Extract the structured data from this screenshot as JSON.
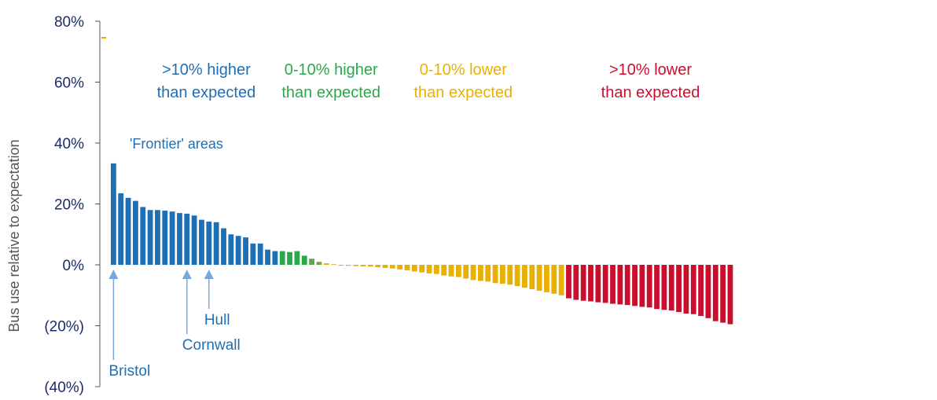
{
  "chart_data": {
    "type": "bar",
    "title": "",
    "ylabel": "Bus use relative to expectation",
    "ylim": [
      -40,
      80
    ],
    "yticks": [
      80,
      60,
      40,
      20,
      0,
      -20,
      -40
    ],
    "ytick_labels": [
      "80%",
      "60%",
      "40%",
      "20%",
      "0%",
      "(20%)",
      "(40%)"
    ],
    "grid": false,
    "bands": [
      {
        "label_line1": ">10% higher",
        "label_line2": "than expected",
        "color": "#1f6fb5",
        "start": 0,
        "end": 26
      },
      {
        "label_line1": "0-10% higher",
        "label_line2": "than expected",
        "color": "#2aa84a",
        "start": 26,
        "end": 34
      },
      {
        "label_line1": "0-10% lower",
        "label_line2": "than expected",
        "color": "#eab000",
        "start": 34,
        "end": 62
      },
      {
        "label_line1": ">10% lower",
        "label_line2": "than expected",
        "color": "#c8102e",
        "start": 62,
        "end": 85
      }
    ],
    "frontier_label": "'Frontier' areas",
    "annotations": [
      {
        "text": "Bristol",
        "index": 0
      },
      {
        "text": "Cornwall",
        "index": 10
      },
      {
        "text": "Hull",
        "index": 13
      }
    ],
    "values": [
      33.3,
      23.5,
      22.0,
      21.0,
      19.0,
      18.0,
      18.0,
      17.8,
      17.5,
      17.0,
      16.8,
      16.2,
      14.8,
      14.2,
      14.0,
      12.0,
      10.0,
      9.5,
      9.0,
      7.0,
      7.0,
      5.0,
      4.5,
      4.5,
      4.2,
      4.5,
      3.0,
      2.0,
      1.0,
      0.5,
      0.2,
      -0.2,
      -0.3,
      -0.4,
      -0.5,
      -0.6,
      -0.8,
      -1.0,
      -1.2,
      -1.5,
      -1.8,
      -2.2,
      -2.5,
      -2.8,
      -3.0,
      -3.5,
      -3.8,
      -4.0,
      -4.5,
      -5.0,
      -5.3,
      -5.5,
      -6.0,
      -6.2,
      -6.5,
      -7.0,
      -7.5,
      -8.0,
      -8.5,
      -9.0,
      -9.5,
      -10.0,
      -11.0,
      -11.5,
      -11.8,
      -12.0,
      -12.3,
      -12.5,
      -12.8,
      -13.0,
      -13.2,
      -13.5,
      -13.8,
      -14.0,
      -14.5,
      -14.8,
      -15.0,
      -15.5,
      -16.0,
      -16.2,
      -16.8,
      -17.5,
      -18.5,
      -19.0,
      -19.5
    ],
    "colors": [
      "#1f6fb5",
      "#1f6fb5",
      "#1f6fb5",
      "#1f6fb5",
      "#1f6fb5",
      "#1f6fb5",
      "#1f6fb5",
      "#1f6fb5",
      "#1f6fb5",
      "#1f6fb5",
      "#1f6fb5",
      "#1f6fb5",
      "#1f6fb5",
      "#1f6fb5",
      "#1f6fb5",
      "#1f6fb5",
      "#1f6fb5",
      "#1f6fb5",
      "#1f6fb5",
      "#1f6fb5",
      "#1f6fb5",
      "#1f6fb5",
      "#1f6fb5",
      "#2aa84a",
      "#2aa84a",
      "#2aa84a",
      "#2aa84a",
      "#5aa84a",
      "#7aa840",
      "#eab000",
      "#eab000",
      "#eab000",
      "#eab000",
      "#eab000",
      "#eab000",
      "#eab000",
      "#eab000",
      "#eab000",
      "#eab000",
      "#eab000",
      "#eab000",
      "#eab000",
      "#eab000",
      "#eab000",
      "#eab000",
      "#eab000",
      "#eab000",
      "#eab000",
      "#eab000",
      "#eab000",
      "#eab000",
      "#eab000",
      "#eab000",
      "#eab000",
      "#eab000",
      "#eab000",
      "#eab000",
      "#eab000",
      "#eab000",
      "#eab000",
      "#eab000",
      "#eab000",
      "#c8102e",
      "#c8102e",
      "#c8102e",
      "#c8102e",
      "#c8102e",
      "#c8102e",
      "#c8102e",
      "#c8102e",
      "#c8102e",
      "#c8102e",
      "#c8102e",
      "#c8102e",
      "#c8102e",
      "#c8102e",
      "#c8102e",
      "#c8102e",
      "#c8102e",
      "#c8102e",
      "#c8102e",
      "#c8102e",
      "#c8102e",
      "#c8102e",
      "#c8102e"
    ],
    "colors_theme": {
      "axis": "#555555",
      "tick_text": "#1a2b6b",
      "blue": "#1f6fb5",
      "green": "#2aa84a",
      "amber": "#eab000",
      "red": "#c8102e",
      "arrow": "#7aa7d9"
    }
  }
}
